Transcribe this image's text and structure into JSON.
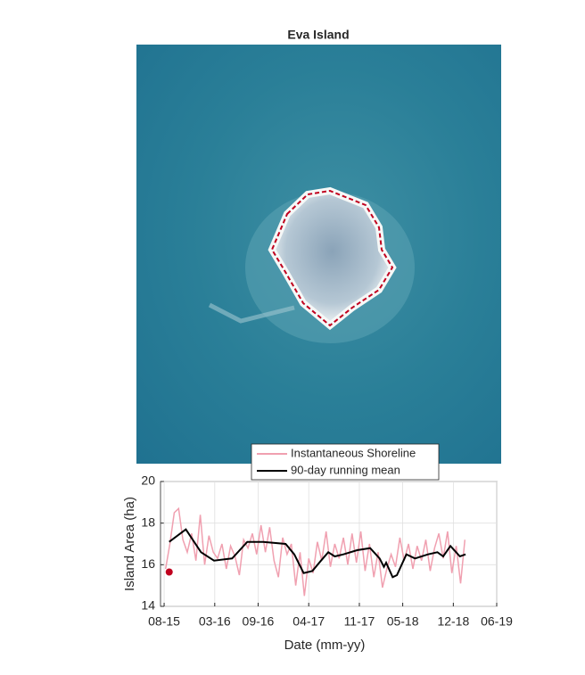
{
  "chart_data": {
    "type": "line",
    "title": "Eva Island",
    "x_label": "Date (mm-yy)",
    "y_label": "Island Area (ha)",
    "xlim": [
      -0.5,
      46
    ],
    "ylim": [
      14,
      20
    ],
    "xticks": [
      {
        "value": 0,
        "label": "08-15"
      },
      {
        "value": 7,
        "label": "03-16"
      },
      {
        "value": 13,
        "label": "09-16"
      },
      {
        "value": 20,
        "label": "04-17"
      },
      {
        "value": 27,
        "label": "11-17"
      },
      {
        "value": 33,
        "label": "05-18"
      },
      {
        "value": 40,
        "label": "12-18"
      },
      {
        "value": 46,
        "label": "06-19"
      }
    ],
    "yticks": [
      14,
      16,
      18,
      20
    ],
    "grid": true,
    "legend": "top",
    "series": [
      {
        "name": "Instantaneous Shoreline",
        "color": "#f0a0b0",
        "x": [
          0.2,
          0.8,
          1.4,
          2,
          2.6,
          3.2,
          3.8,
          4.4,
          5,
          5.6,
          6.2,
          6.8,
          7.4,
          8,
          8.6,
          9.2,
          9.8,
          10.4,
          11,
          11.6,
          12.2,
          12.8,
          13.4,
          14,
          14.6,
          15.2,
          15.8,
          16.4,
          17,
          17.6,
          18.2,
          18.8,
          19.4,
          20,
          20.6,
          21.2,
          21.8,
          22.4,
          23,
          23.6,
          24.2,
          24.8,
          25.4,
          26,
          26.6,
          27.2,
          27.8,
          28.4,
          29,
          29.6,
          30.2,
          30.8,
          31.4,
          32,
          32.6,
          33.2,
          33.8,
          34.4,
          35,
          35.6,
          36.2,
          36.8,
          37.4,
          38,
          38.6,
          39.2,
          39.8,
          40.4,
          41,
          41.6
        ],
        "values": [
          15.8,
          17.0,
          18.5,
          18.7,
          17.2,
          16.6,
          17.5,
          16.2,
          18.4,
          16.0,
          17.4,
          16.6,
          16.3,
          17.0,
          15.8,
          16.9,
          16.4,
          15.5,
          17.2,
          16.8,
          17.5,
          16.5,
          17.9,
          16.6,
          17.8,
          16.2,
          15.4,
          17.3,
          16.5,
          17.0,
          15.0,
          16.6,
          14.5,
          16.3,
          15.6,
          17.1,
          16.2,
          17.6,
          15.9,
          17.0,
          16.3,
          17.3,
          16.0,
          17.5,
          16.1,
          17.6,
          15.7,
          17.0,
          15.4,
          16.6,
          14.9,
          15.8,
          16.5,
          15.9,
          17.3,
          16.2,
          17.0,
          15.8,
          16.9,
          16.2,
          17.2,
          15.7,
          16.8,
          17.5,
          16.3,
          17.6,
          15.6,
          16.9,
          15.1,
          17.2
        ]
      },
      {
        "name": "90-day running mean",
        "color": "#000000",
        "x": [
          0.7,
          3,
          5.1,
          6.9,
          9.4,
          11.5,
          13.7,
          16.8,
          18,
          19.3,
          20.5,
          21.7,
          22.7,
          23.6,
          24.8,
          26.7,
          28.5,
          29.8,
          30.4,
          30.7,
          31.6,
          32.2,
          33.5,
          34.7,
          36.5,
          37.8,
          38.6,
          39.6,
          40.9,
          41.7
        ],
        "values": [
          17.1,
          17.7,
          16.6,
          16.2,
          16.3,
          17.1,
          17.1,
          17.0,
          16.5,
          15.6,
          15.7,
          16.2,
          16.6,
          16.4,
          16.5,
          16.7,
          16.8,
          16.3,
          15.9,
          16.1,
          15.4,
          15.5,
          16.5,
          16.3,
          16.5,
          16.6,
          16.4,
          16.9,
          16.4,
          16.5
        ]
      }
    ],
    "current": {
      "x": 0.7,
      "y": 15.65,
      "color": "#c0001e"
    }
  }
}
